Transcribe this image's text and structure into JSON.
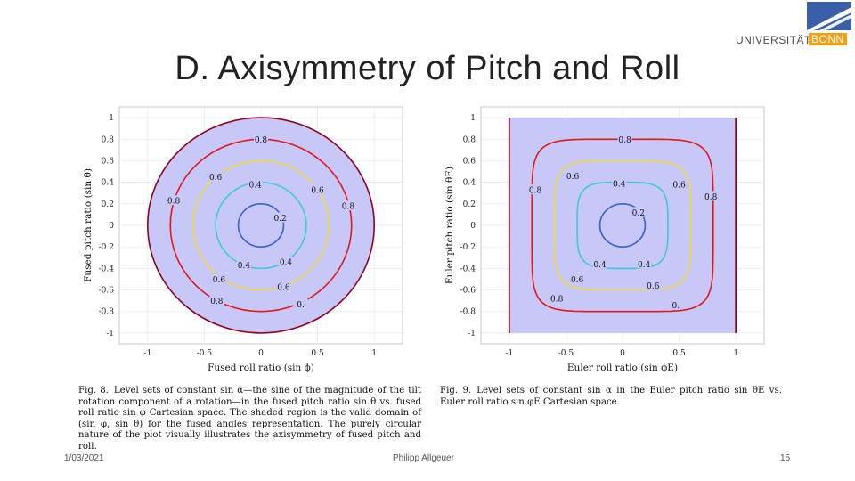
{
  "slide": {
    "title": "D.  Axisymmetry of Pitch and Roll",
    "footer": {
      "date": "1/03/2021",
      "author": "Philipp Allgeuer",
      "page": "15"
    },
    "logo": {
      "university": "UNIVERSITÄT",
      "city": "BONN",
      "colors": {
        "blue": "#3a5ea8",
        "orange": "#f0a010"
      }
    }
  },
  "figures": [
    {
      "caption_label": "Fig. 8.",
      "caption": "Level sets of constant sin α—the sine of the magnitude of the tilt rotation component of a rotation—in the fused pitch ratio sin θ vs. fused roll ratio sin φ Cartesian space. The shaded region is the valid domain of (sin φ, sin θ) for the fused angles representation. The purely circular nature of the plot visually illustrates the axisymmetry of fused pitch and roll."
    },
    {
      "caption_label": "Fig. 9.",
      "caption": "Level sets of constant sin α in the Euler pitch ratio sin θE vs. Euler roll ratio sin φE Cartesian space."
    }
  ],
  "chart_data": [
    {
      "type": "contour",
      "xlabel": "Fused roll ratio (sin ϕ)",
      "ylabel": "Fused pitch ratio (sin θ)",
      "xlim": [
        -1.25,
        1.25
      ],
      "ylim": [
        -1.1,
        1.1
      ],
      "xticks": [
        "-1",
        "-0.5",
        "0",
        "0.5",
        "1"
      ],
      "yticks": [
        "1",
        "0.8",
        "0.6",
        "0.4",
        "0.2",
        "0",
        "-0.2",
        "-0.4",
        "-0.6",
        "-0.8",
        "-1"
      ],
      "domain": "unit disk",
      "shade_color": "#c8c8f8",
      "levels": [
        {
          "value": 0.2,
          "shape": "circle",
          "radius": 0.2,
          "color": "#3a5fd0"
        },
        {
          "value": 0.4,
          "shape": "circle",
          "radius": 0.4,
          "color": "#40c8d8"
        },
        {
          "value": 0.6,
          "shape": "circle",
          "radius": 0.6,
          "color": "#f0d840"
        },
        {
          "value": 0.8,
          "shape": "circle",
          "radius": 0.8,
          "color": "#e01818"
        },
        {
          "value": 1.0,
          "shape": "circle",
          "radius": 1.0,
          "color": "#900020"
        }
      ],
      "contour_labels": [
        {
          "text": "0.8",
          "x": 0.0,
          "y": 0.8
        },
        {
          "text": "0.6",
          "x": -0.4,
          "y": 0.45
        },
        {
          "text": "0.4",
          "x": -0.05,
          "y": 0.38
        },
        {
          "text": "0.6",
          "x": 0.5,
          "y": 0.33
        },
        {
          "text": "0.8",
          "x": -0.77,
          "y": 0.23
        },
        {
          "text": "0.8",
          "x": 0.77,
          "y": 0.18
        },
        {
          "text": "0.2",
          "x": 0.17,
          "y": 0.07
        },
        {
          "text": "0.4",
          "x": -0.15,
          "y": -0.37
        },
        {
          "text": "0.4",
          "x": 0.22,
          "y": -0.34
        },
        {
          "text": "0.6",
          "x": -0.37,
          "y": -0.5
        },
        {
          "text": "0.6",
          "x": 0.2,
          "y": -0.57
        },
        {
          "text": "0.8",
          "x": -0.39,
          "y": -0.7
        },
        {
          "text": "0.",
          "x": 0.35,
          "y": -0.73
        }
      ]
    },
    {
      "type": "contour",
      "xlabel": "Euler roll ratio (sin ϕE)",
      "ylabel": "Euler pitch ratio (sin θE)",
      "xlim": [
        -1.25,
        1.25
      ],
      "ylim": [
        -1.1,
        1.1
      ],
      "xticks": [
        "-1",
        "-0.5",
        "0",
        "0.5",
        "1"
      ],
      "yticks": [
        "1",
        "0.8",
        "0.6",
        "0.4",
        "0.2",
        "0",
        "-0.2",
        "-0.4",
        "-0.6",
        "-0.8",
        "-1"
      ],
      "domain": "square [-1,1]x[-1,1]",
      "shade_color": "#c8c8f8",
      "levels": [
        {
          "value": 0.2,
          "shape": "circle",
          "radius": 0.2,
          "color": "#3a5fd0"
        },
        {
          "value": 0.4,
          "shape": "rounded-square",
          "radius": 0.4,
          "color": "#40c8d8"
        },
        {
          "value": 0.6,
          "shape": "rounded-square",
          "radius": 0.6,
          "color": "#f0d840"
        },
        {
          "value": 0.8,
          "shape": "rounded-square",
          "radius": 0.8,
          "color": "#e01818"
        },
        {
          "value": 1.0,
          "shape": "square-edge",
          "radius": 1.0,
          "color": "#900020"
        }
      ],
      "contour_labels": [
        {
          "text": "0.8",
          "x": 0.02,
          "y": 0.8
        },
        {
          "text": "0.6",
          "x": -0.44,
          "y": 0.46
        },
        {
          "text": "0.4",
          "x": -0.03,
          "y": 0.39
        },
        {
          "text": "0.6",
          "x": 0.5,
          "y": 0.38
        },
        {
          "text": "0.8",
          "x": -0.77,
          "y": 0.33
        },
        {
          "text": "0.8",
          "x": 0.78,
          "y": 0.27
        },
        {
          "text": "0.2",
          "x": 0.14,
          "y": 0.12
        },
        {
          "text": "0.4",
          "x": -0.2,
          "y": -0.36
        },
        {
          "text": "0.4",
          "x": 0.19,
          "y": -0.36
        },
        {
          "text": "0.6",
          "x": -0.4,
          "y": -0.5
        },
        {
          "text": "0.6",
          "x": 0.27,
          "y": -0.56
        },
        {
          "text": "0.8",
          "x": -0.58,
          "y": -0.68
        },
        {
          "text": "0.",
          "x": 0.47,
          "y": -0.74
        }
      ]
    }
  ]
}
